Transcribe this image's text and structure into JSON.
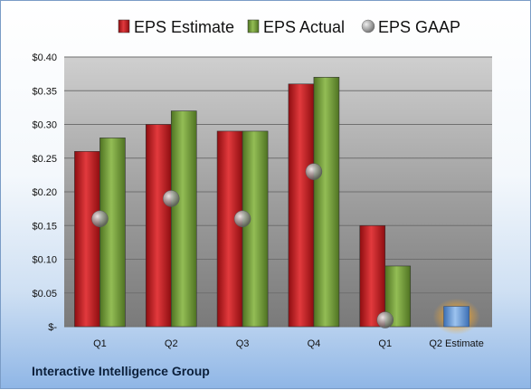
{
  "company": "Interactive Intelligence Group",
  "chart_data": {
    "type": "bar",
    "categories": [
      "Q1",
      "Q2",
      "Q3",
      "Q4",
      "Q1",
      "Q2 Estimate"
    ],
    "series": [
      {
        "name": "EPS Estimate",
        "values": [
          0.26,
          0.3,
          0.29,
          0.36,
          0.15,
          null
        ],
        "color": "#c0161b"
      },
      {
        "name": "EPS Actual",
        "values": [
          0.28,
          0.32,
          0.29,
          0.37,
          0.09,
          null
        ],
        "color": "#6e9a32"
      },
      {
        "name": "EPS GAAP",
        "values": [
          0.16,
          0.19,
          0.16,
          0.23,
          0.01,
          null
        ],
        "color": "#a7a7a7",
        "marker": "circle"
      }
    ],
    "q2_estimate": {
      "value": 0.03,
      "color": "#5b8fd1",
      "glow": "#f2a02a"
    },
    "ylim": [
      0,
      0.4
    ],
    "yticks": [
      "$-",
      "$0.05",
      "$0.10",
      "$0.15",
      "$0.20",
      "$0.25",
      "$0.30",
      "$0.35",
      "$0.40"
    ],
    "legend_position": "top",
    "grid": true
  }
}
